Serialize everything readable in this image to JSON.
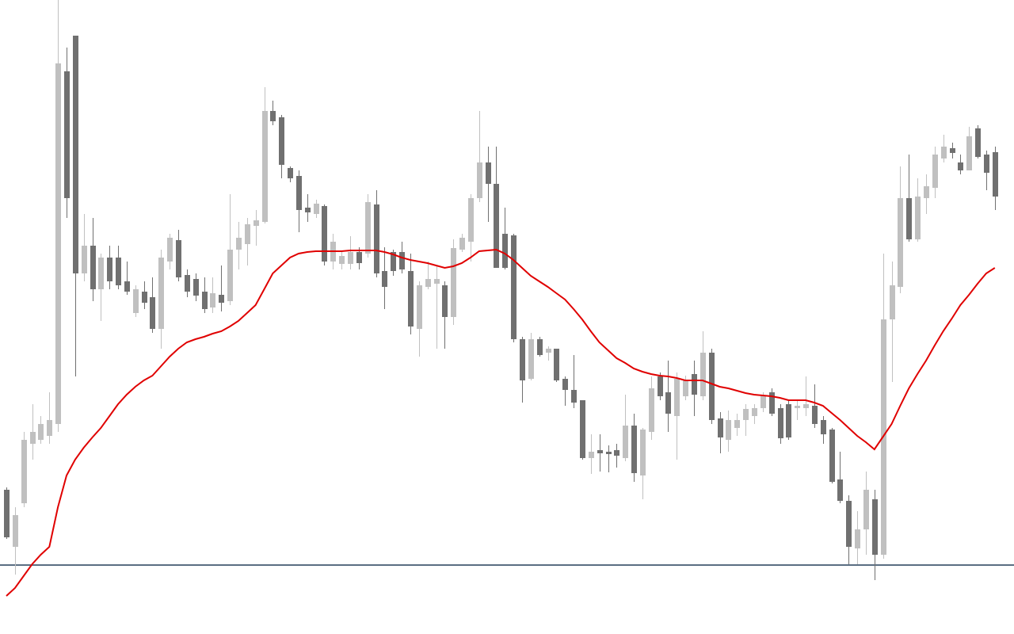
{
  "chart_data": {
    "type": "candlestick",
    "ylim": [
      0,
      800
    ],
    "up_color": "#c0c0c0",
    "down_color": "#707070",
    "open": [
      182,
      110,
      165,
      240,
      245,
      250,
      265,
      710,
      755,
      455,
      490,
      435,
      475,
      475,
      445,
      405,
      432,
      425,
      385,
      470,
      497,
      453,
      448,
      432,
      412,
      428,
      420,
      485,
      492,
      515,
      520,
      660,
      652,
      588,
      578,
      538,
      530,
      540,
      470,
      467,
      467,
      482,
      480,
      542,
      458,
      482,
      482,
      458,
      385,
      438,
      442,
      440,
      400,
      485,
      495,
      550,
      595,
      568,
      505,
      503,
      372,
      322,
      372,
      355,
      360,
      322,
      308,
      295,
      222,
      232,
      230,
      232,
      222,
      263,
      200,
      255,
      325,
      305,
      275,
      300,
      328,
      300,
      355,
      272,
      245,
      260,
      270,
      275,
      285,
      305,
      285,
      290,
      285,
      285,
      288,
      270,
      258,
      195,
      168,
      108,
      132,
      170,
      100,
      397,
      438,
      550,
      498,
      550,
      563,
      600,
      613,
      595,
      585,
      638,
      605,
      608
    ],
    "high": [
      185,
      160,
      255,
      290,
      275,
      305,
      800,
      740,
      755,
      530,
      525,
      480,
      490,
      490,
      470,
      440,
      445,
      450,
      485,
      505,
      510,
      460,
      455,
      450,
      450,
      465,
      555,
      520,
      525,
      535,
      690,
      673,
      655,
      590,
      585,
      555,
      548,
      542,
      505,
      482,
      502,
      488,
      555,
      560,
      488,
      485,
      495,
      480,
      445,
      470,
      465,
      445,
      498,
      505,
      555,
      660,
      615,
      615,
      538,
      505,
      375,
      380,
      375,
      363,
      360,
      325,
      352,
      295,
      252,
      252,
      238,
      240,
      302,
      278,
      260,
      325,
      330,
      345,
      330,
      326,
      345,
      382,
      360,
      280,
      282,
      278,
      290,
      290,
      305,
      310,
      290,
      295,
      295,
      325,
      315,
      275,
      260,
      230,
      175,
      155,
      205,
      182,
      480,
      470,
      590,
      605,
      575,
      580,
      615,
      630,
      620,
      605,
      640,
      642,
      610,
      615
    ],
    "low": [
      120,
      75,
      160,
      220,
      240,
      240,
      255,
      525,
      325,
      445,
      420,
      395,
      435,
      435,
      428,
      400,
      410,
      380,
      360,
      460,
      445,
      425,
      420,
      405,
      405,
      407,
      415,
      460,
      465,
      490,
      518,
      642,
      575,
      570,
      507,
      520,
      525,
      465,
      460,
      460,
      460,
      460,
      475,
      450,
      410,
      452,
      455,
      378,
      350,
      435,
      360,
      360,
      390,
      482,
      470,
      545,
      520,
      462,
      460,
      368,
      292,
      320,
      350,
      345,
      318,
      288,
      285,
      220,
      202,
      205,
      204,
      210,
      218,
      192,
      170,
      245,
      295,
      255,
      220,
      295,
      275,
      295,
      265,
      228,
      230,
      250,
      250,
      265,
      280,
      275,
      240,
      245,
      270,
      275,
      260,
      240,
      190,
      165,
      88,
      88,
      100,
      68,
      95,
      318,
      430,
      495,
      495,
      530,
      550,
      595,
      600,
      580,
      585,
      600,
      560,
      535
    ],
    "close": [
      122,
      150,
      245,
      255,
      265,
      270,
      720,
      550,
      455,
      490,
      435,
      475,
      445,
      440,
      432,
      435,
      418,
      385,
      475,
      500,
      450,
      432,
      427,
      410,
      430,
      418,
      485,
      500,
      517,
      522,
      660,
      647,
      592,
      575,
      535,
      532,
      543,
      470,
      495,
      477,
      482,
      468,
      545,
      455,
      438,
      458,
      460,
      388,
      440,
      448,
      448,
      400,
      487,
      500,
      550,
      595,
      568,
      462,
      462,
      372,
      320,
      372,
      352,
      360,
      320,
      308,
      292,
      222,
      230,
      228,
      227,
      225,
      263,
      203,
      258,
      310,
      300,
      278,
      322,
      320,
      302,
      355,
      270,
      248,
      270,
      270,
      284,
      285,
      300,
      278,
      247,
      248,
      288,
      290,
      265,
      252,
      192,
      168,
      110,
      132,
      182,
      100,
      397,
      440,
      550,
      498,
      552,
      565,
      605,
      615,
      607,
      585,
      628,
      602,
      582,
      552
    ],
    "lines": [
      {
        "color": "#e00000",
        "values": [
          48,
          58,
          73,
          88,
          100,
          110,
          160,
          200,
          220,
          235,
          248,
          260,
          275,
          290,
          302,
          312,
          320,
          326,
          338,
          350,
          360,
          368,
          372,
          375,
          379,
          382,
          388,
          395,
          405,
          415,
          435,
          455,
          465,
          475,
          480,
          482,
          483,
          483,
          483,
          483,
          484,
          484,
          484,
          484,
          482,
          479,
          475,
          472,
          470,
          468,
          465,
          462,
          464,
          468,
          475,
          483,
          484,
          485,
          480,
          472,
          462,
          452,
          445,
          438,
          430,
          422,
          410,
          397,
          382,
          368,
          358,
          348,
          342,
          335,
          331,
          328,
          326,
          325,
          323,
          320,
          320,
          320,
          316,
          312,
          310,
          307,
          304,
          302,
          301,
          300,
          298,
          295,
          295,
          295,
          292,
          288,
          279,
          270,
          260,
          250,
          242,
          233,
          249,
          265,
          288,
          310,
          328,
          345,
          364,
          382,
          398,
          415,
          428,
          442,
          455,
          462
        ]
      }
    ],
    "hlines": [
      {
        "value": 87,
        "color": "#5a6e82"
      }
    ]
  }
}
